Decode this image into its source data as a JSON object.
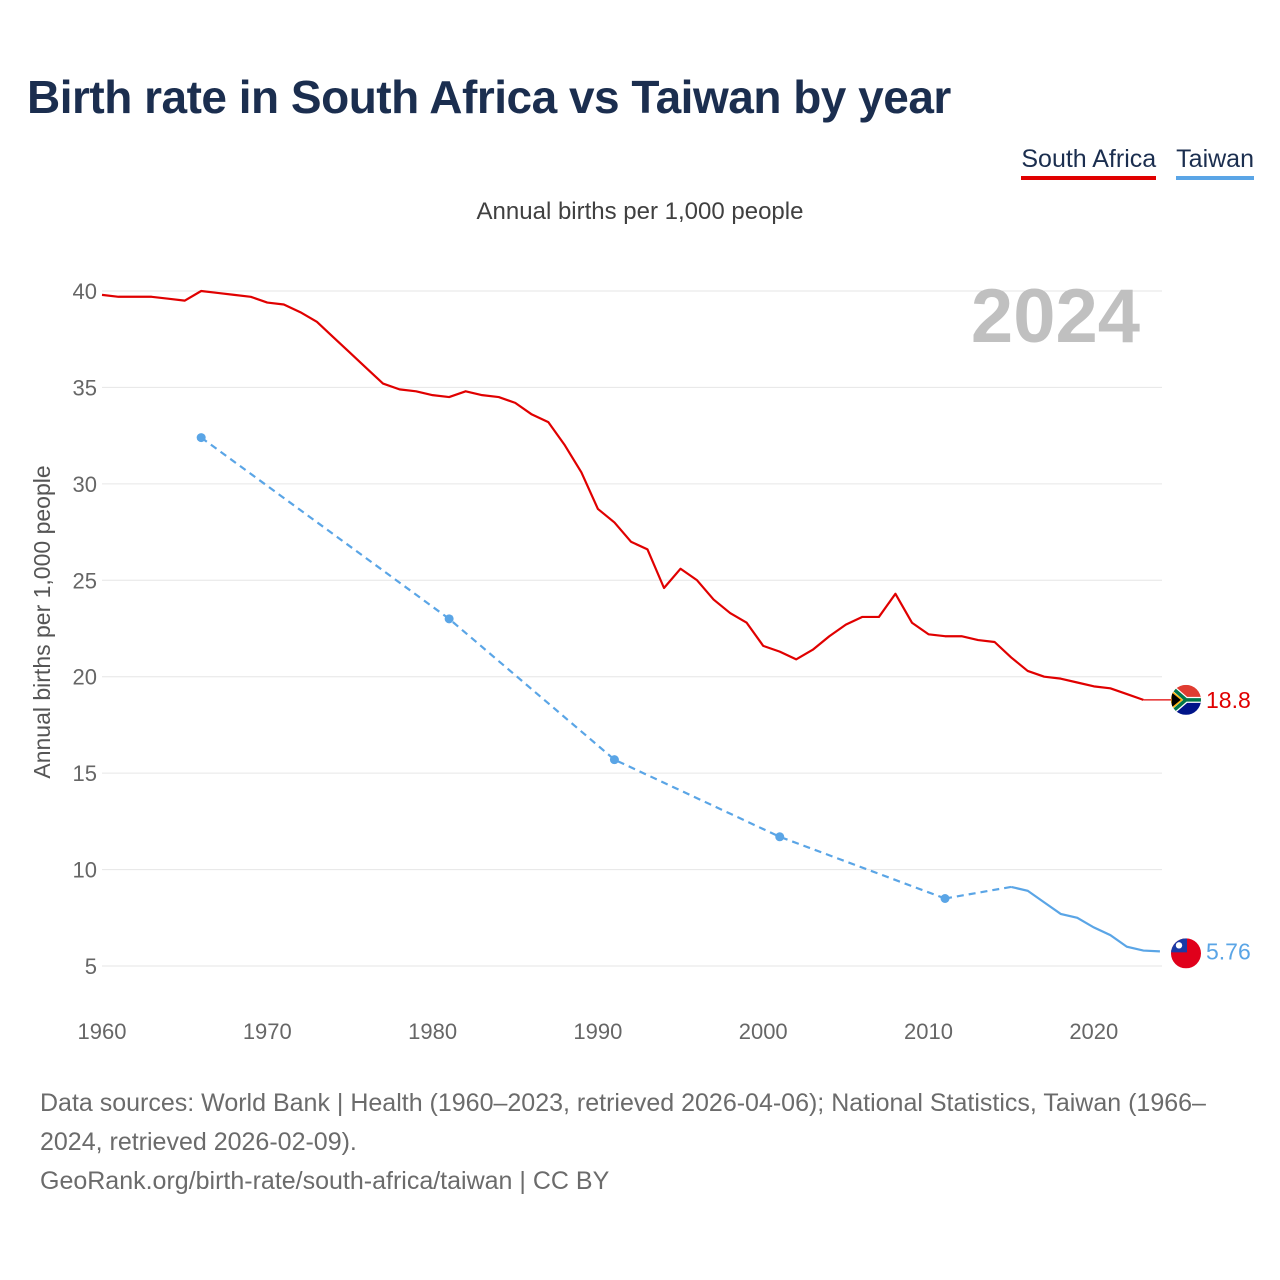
{
  "title": "Birth rate in South Africa vs Taiwan by year",
  "legend": {
    "south_africa": "South Africa",
    "taiwan": "Taiwan"
  },
  "subtitle": "Annual births per 1,000 people",
  "year_watermark": "2024",
  "footer": {
    "sources": "Data sources: World Bank | Health (1960–2023, retrieved 2026-04-06); National Statistics, Taiwan (1966–2024, retrieved 2026-02-09).",
    "credit": "GeoRank.org/birth-rate/south-africa/taiwan | CC BY"
  },
  "colors": {
    "south_africa": "#e00000",
    "taiwan": "#5aa5e6",
    "title": "#1b2e4f"
  },
  "chart_data": {
    "type": "line",
    "title": "Birth rate in South Africa vs Taiwan by year",
    "xlabel": "",
    "ylabel": "Annual births per 1,000 people",
    "xlim": [
      1960,
      2024
    ],
    "ylim": [
      3,
      41
    ],
    "x_ticks": [
      "1960",
      "1970",
      "1980",
      "1990",
      "2000",
      "2010",
      "2020"
    ],
    "y_ticks": [
      "5",
      "10",
      "15",
      "20",
      "25",
      "30",
      "35",
      "40"
    ],
    "grid": true,
    "legend_position": "top-right",
    "series": [
      {
        "name": "South Africa",
        "color": "#e00000",
        "end_label": "18.8",
        "points": [
          [
            1960,
            39.8
          ],
          [
            1961,
            39.7
          ],
          [
            1962,
            39.7
          ],
          [
            1963,
            39.7
          ],
          [
            1964,
            39.6
          ],
          [
            1965,
            39.5
          ],
          [
            1966,
            40.0
          ],
          [
            1967,
            39.9
          ],
          [
            1968,
            39.8
          ],
          [
            1969,
            39.7
          ],
          [
            1970,
            39.4
          ],
          [
            1971,
            39.3
          ],
          [
            1972,
            38.9
          ],
          [
            1973,
            38.4
          ],
          [
            1974,
            37.6
          ],
          [
            1975,
            36.8
          ],
          [
            1976,
            36.0
          ],
          [
            1977,
            35.2
          ],
          [
            1978,
            34.9
          ],
          [
            1979,
            34.8
          ],
          [
            1980,
            34.6
          ],
          [
            1981,
            34.5
          ],
          [
            1982,
            34.8
          ],
          [
            1983,
            34.6
          ],
          [
            1984,
            34.5
          ],
          [
            1985,
            34.2
          ],
          [
            1986,
            33.6
          ],
          [
            1987,
            33.2
          ],
          [
            1988,
            32.0
          ],
          [
            1989,
            30.6
          ],
          [
            1990,
            28.7
          ],
          [
            1991,
            28.0
          ],
          [
            1992,
            27.0
          ],
          [
            1993,
            26.6
          ],
          [
            1994,
            24.6
          ],
          [
            1995,
            25.6
          ],
          [
            1996,
            25.0
          ],
          [
            1997,
            24.0
          ],
          [
            1998,
            23.3
          ],
          [
            1999,
            22.8
          ],
          [
            2000,
            21.6
          ],
          [
            2001,
            21.3
          ],
          [
            2002,
            20.9
          ],
          [
            2003,
            21.4
          ],
          [
            2004,
            22.1
          ],
          [
            2005,
            22.7
          ],
          [
            2006,
            23.1
          ],
          [
            2007,
            23.1
          ],
          [
            2008,
            24.3
          ],
          [
            2009,
            22.8
          ],
          [
            2010,
            22.2
          ],
          [
            2011,
            22.1
          ],
          [
            2012,
            22.1
          ],
          [
            2013,
            21.9
          ],
          [
            2014,
            21.8
          ],
          [
            2015,
            21.0
          ],
          [
            2016,
            20.3
          ],
          [
            2017,
            20.0
          ],
          [
            2018,
            19.9
          ],
          [
            2019,
            19.7
          ],
          [
            2020,
            19.5
          ],
          [
            2021,
            19.4
          ],
          [
            2022,
            19.1
          ],
          [
            2023,
            18.8
          ],
          [
            2024,
            18.8
          ]
        ]
      },
      {
        "name": "Taiwan",
        "color": "#5aa5e6",
        "end_label": "5.76",
        "observed_years": [
          1966,
          1981,
          1991,
          2001,
          2011
        ],
        "points": [
          [
            1966,
            32.4
          ],
          [
            1981,
            23.0
          ],
          [
            1991,
            15.7
          ],
          [
            2001,
            11.7
          ],
          [
            2011,
            8.5
          ],
          [
            2015,
            9.1
          ],
          [
            2016,
            8.9
          ],
          [
            2017,
            8.3
          ],
          [
            2018,
            7.7
          ],
          [
            2019,
            7.5
          ],
          [
            2020,
            7.0
          ],
          [
            2021,
            6.6
          ],
          [
            2022,
            6.0
          ],
          [
            2023,
            5.8
          ],
          [
            2024,
            5.76
          ]
        ]
      }
    ]
  }
}
